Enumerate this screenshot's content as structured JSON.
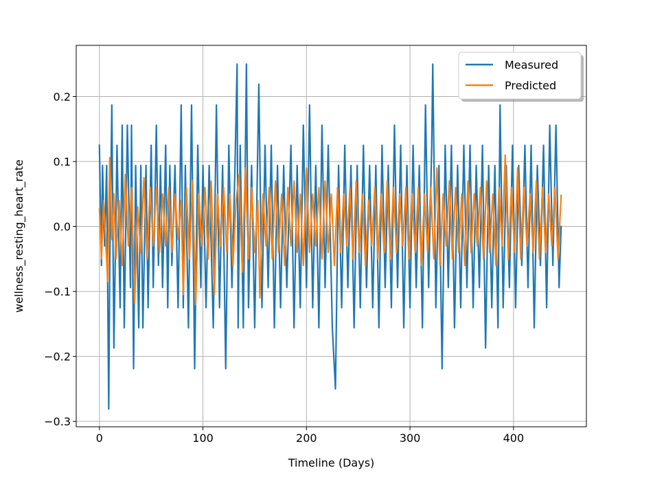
{
  "chart_data": {
    "type": "line",
    "title": "",
    "xlabel": "Timeline (Days)",
    "ylabel": "wellness_resting_heart_rate",
    "xlim": [
      -22.4,
      470.4
    ],
    "ylim": [
      -0.3083,
      0.2788
    ],
    "xticks": [
      0,
      100,
      200,
      300,
      400
    ],
    "xtick_labels": [
      "0",
      "100",
      "200",
      "300",
      "400"
    ],
    "yticks": [
      -0.3,
      -0.2,
      -0.1,
      0.0,
      0.1,
      0.2
    ],
    "ytick_labels": [
      "−0.3",
      "−0.2",
      "−0.1",
      "0.0",
      "0.1",
      "0.2"
    ],
    "grid": true,
    "legend_position": "top-right",
    "colors": {
      "measured": "#1f77b4",
      "predicted": "#ff7f0e"
    },
    "series": [
      {
        "name": "Measured",
        "color": "#1f77b4",
        "x": [
          0,
          2,
          3,
          5,
          7,
          9,
          10,
          12,
          14,
          17,
          20,
          22,
          24,
          27,
          30,
          31,
          33,
          35,
          38,
          40,
          42,
          45,
          47,
          50,
          52,
          55,
          57,
          59,
          61,
          64,
          66,
          68,
          70,
          73,
          76,
          79,
          81,
          83,
          86,
          89,
          92,
          95,
          98,
          100,
          103,
          106,
          110,
          113,
          116,
          119,
          122,
          125,
          128,
          131,
          133,
          134,
          136,
          139,
          142,
          144,
          147,
          150,
          154,
          157,
          160,
          163,
          166,
          169,
          172,
          175,
          178,
          181,
          185,
          188,
          191,
          194,
          197,
          200,
          203,
          206,
          209,
          212,
          215,
          218,
          221,
          225,
          228,
          231,
          234,
          237,
          240,
          243,
          246,
          249,
          252,
          255,
          258,
          261,
          264,
          267,
          270,
          273,
          276,
          279,
          282,
          285,
          288,
          291,
          294,
          297,
          300,
          303,
          306,
          309,
          312,
          315,
          318,
          321,
          322,
          325,
          328,
          331,
          334,
          337,
          340,
          343,
          346,
          349,
          352,
          355,
          358,
          361,
          364,
          367,
          370,
          373,
          376,
          379,
          382,
          385,
          387,
          390,
          393,
          396,
          399,
          402,
          405,
          408,
          411,
          414,
          417,
          420,
          423,
          426,
          429,
          432,
          435,
          438,
          441,
          444,
          446
        ],
        "y": [
          0.125,
          -0.06,
          0.094,
          -0.03,
          0.094,
          -0.281,
          -0.06,
          0.187,
          -0.187,
          0.125,
          -0.125,
          0.156,
          -0.156,
          0.156,
          -0.094,
          0.156,
          -0.219,
          0.094,
          -0.156,
          0.094,
          -0.156,
          0.094,
          -0.125,
          0.125,
          -0.094,
          0.156,
          -0.06,
          0.094,
          -0.094,
          0.125,
          -0.125,
          0.094,
          -0.06,
          0.094,
          -0.125,
          0.187,
          -0.125,
          0.094,
          -0.156,
          0.187,
          -0.219,
          0.125,
          -0.094,
          0.094,
          -0.125,
          0.094,
          -0.156,
          0.187,
          -0.125,
          0.094,
          -0.219,
          0.125,
          -0.094,
          0.094,
          0.25,
          -0.156,
          0.125,
          -0.156,
          0.25,
          -0.125,
          0.094,
          -0.156,
          0.219,
          -0.125,
          0.125,
          -0.094,
          0.125,
          -0.156,
          0.094,
          -0.125,
          0.094,
          -0.094,
          0.125,
          -0.156,
          0.094,
          -0.125,
          0.156,
          -0.094,
          0.187,
          -0.125,
          0.094,
          -0.156,
          0.156,
          -0.094,
          0.125,
          -0.156,
          -0.25,
          0.094,
          -0.125,
          0.125,
          -0.094,
          0.094,
          -0.156,
          0.094,
          -0.125,
          0.125,
          -0.094,
          0.094,
          -0.125,
          0.094,
          -0.156,
          0.125,
          -0.094,
          0.094,
          -0.125,
          0.156,
          -0.094,
          0.125,
          -0.156,
          0.094,
          -0.125,
          0.125,
          -0.094,
          0.094,
          -0.156,
          0.187,
          -0.094,
          0.125,
          0.25,
          -0.125,
          0.094,
          -0.219,
          0.125,
          -0.094,
          0.125,
          -0.156,
          0.094,
          -0.125,
          0.125,
          -0.094,
          0.125,
          -0.125,
          0.094,
          -0.094,
          0.125,
          -0.187,
          0.094,
          -0.125,
          0.094,
          -0.156,
          0.187,
          -0.125,
          0.094,
          -0.094,
          0.125,
          -0.125,
          0.094,
          -0.06,
          0.125,
          -0.094,
          0.125,
          -0.156,
          0.094,
          -0.06,
          0.125,
          -0.125,
          0.156,
          -0.06,
          0.156,
          -0.094,
          0.0
        ]
      },
      {
        "name": "Predicted",
        "color": "#ff7f0e",
        "x": [
          0,
          2,
          4,
          6,
          8,
          10,
          12,
          14,
          16,
          19,
          22,
          25,
          28,
          31,
          34,
          37,
          40,
          43,
          46,
          49,
          52,
          55,
          58,
          61,
          64,
          67,
          70,
          73,
          76,
          79,
          81,
          84,
          87,
          90,
          93,
          96,
          99,
          102,
          105,
          108,
          111,
          114,
          117,
          120,
          123,
          126,
          129,
          132,
          135,
          138,
          141,
          144,
          147,
          150,
          153,
          155,
          158,
          161,
          164,
          167,
          170,
          173,
          176,
          179,
          182,
          185,
          188,
          191,
          194,
          197,
          200,
          203,
          206,
          209,
          212,
          215,
          218,
          221,
          224,
          227,
          230,
          233,
          236,
          239,
          242,
          245,
          248,
          251,
          254,
          257,
          260,
          263,
          266,
          269,
          272,
          275,
          278,
          281,
          284,
          287,
          290,
          293,
          296,
          299,
          302,
          305,
          308,
          311,
          314,
          317,
          320,
          323,
          326,
          329,
          332,
          335,
          338,
          341,
          344,
          347,
          350,
          353,
          356,
          359,
          362,
          365,
          368,
          371,
          374,
          377,
          380,
          383,
          386,
          389,
          392,
          395,
          398,
          401,
          404,
          407,
          410,
          413,
          416,
          419,
          422,
          425,
          428,
          431,
          434,
          437,
          440,
          443,
          446
        ],
        "y": [
          0.027,
          -0.05,
          0.04,
          -0.02,
          -0.085,
          0.106,
          -0.02,
          0.05,
          -0.05,
          0.04,
          -0.06,
          0.08,
          -0.03,
          0.06,
          -0.118,
          0.03,
          -0.04,
          0.075,
          -0.05,
          0.06,
          -0.03,
          0.06,
          -0.04,
          0.05,
          -0.03,
          0.06,
          -0.04,
          0.05,
          -0.02,
          0.04,
          -0.105,
          0.06,
          -0.05,
          0.07,
          -0.12,
          0.05,
          -0.03,
          0.06,
          -0.05,
          0.07,
          -0.105,
          0.05,
          -0.03,
          0.06,
          -0.04,
          0.05,
          -0.06,
          0.04,
          0.08,
          -0.07,
          0.09,
          -0.05,
          0.06,
          -0.04,
          0.04,
          -0.11,
          0.05,
          -0.03,
          0.06,
          -0.05,
          0.07,
          -0.04,
          0.05,
          -0.06,
          0.06,
          -0.03,
          0.07,
          -0.04,
          0.05,
          -0.06,
          0.09,
          -0.04,
          0.05,
          -0.03,
          0.06,
          -0.05,
          0.07,
          -0.04,
          0.05,
          -0.06,
          0.06,
          -0.04,
          0.05,
          -0.03,
          0.06,
          -0.05,
          0.07,
          -0.04,
          0.05,
          -0.06,
          0.04,
          -0.03,
          0.06,
          -0.05,
          0.05,
          -0.04,
          0.07,
          -0.05,
          0.06,
          -0.04,
          0.05,
          -0.03,
          0.06,
          -0.05,
          0.05,
          -0.04,
          0.06,
          -0.06,
          0.05,
          -0.04,
          0.06,
          -0.05,
          0.09,
          -0.06,
          0.05,
          -0.03,
          0.07,
          -0.05,
          0.06,
          -0.04,
          0.05,
          -0.06,
          0.07,
          -0.04,
          0.05,
          -0.03,
          0.06,
          -0.05,
          0.07,
          -0.04,
          0.05,
          -0.06,
          0.06,
          -0.03,
          0.11,
          -0.05,
          0.06,
          -0.04,
          0.09,
          -0.05,
          0.06,
          -0.03,
          0.05,
          -0.04,
          0.07,
          -0.05,
          0.06,
          -0.04,
          0.05,
          -0.03,
          0.06,
          -0.05,
          0.048
        ]
      }
    ]
  }
}
